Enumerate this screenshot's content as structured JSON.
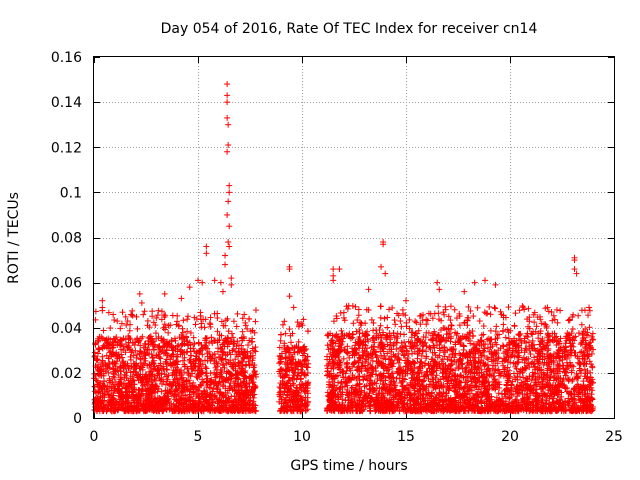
{
  "chart_data": {
    "type": "scatter",
    "title": "Day 054 of 2016, Rate Of TEC Index for receiver cn14",
    "xlabel": "GPS time / hours",
    "ylabel": "ROTI / TECUs",
    "xlim": [
      0,
      25
    ],
    "ylim": [
      0,
      0.16
    ],
    "x_ticks": [
      0,
      5,
      10,
      15,
      20,
      25
    ],
    "x_tick_labels": [
      "0",
      "5",
      "10",
      "15",
      "20",
      "25"
    ],
    "y_ticks": [
      0,
      0.02,
      0.04,
      0.06,
      0.08,
      0.1,
      0.12,
      0.14,
      0.16
    ],
    "y_tick_labels": [
      "0",
      "0.02",
      "0.04",
      "0.06",
      "0.08",
      "0.1",
      "0.12",
      "0.14",
      "0.16"
    ],
    "grid": true,
    "marker": "plus",
    "marker_color": "#ff0000",
    "data_gaps_hours": [
      [
        7.9,
        8.9
      ],
      [
        10.4,
        11.2
      ]
    ],
    "series": [
      {
        "name": "ROTI",
        "bands": [
          {
            "x_range": [
              0.0,
              7.8
            ],
            "y_range": [
              0.003,
              0.036
            ]
          },
          {
            "x_range": [
              8.9,
              10.3
            ],
            "y_range": [
              0.003,
              0.032
            ]
          },
          {
            "x_range": [
              11.2,
              24.0
            ],
            "y_range": [
              0.003,
              0.038
            ]
          }
        ],
        "peaks": [
          {
            "x": 0.4,
            "y": 0.052
          },
          {
            "x": 0.4,
            "y": 0.049
          },
          {
            "x": 2.2,
            "y": 0.055
          },
          {
            "x": 2.3,
            "y": 0.051
          },
          {
            "x": 3.4,
            "y": 0.055
          },
          {
            "x": 4.2,
            "y": 0.053
          },
          {
            "x": 4.6,
            "y": 0.058
          },
          {
            "x": 5.0,
            "y": 0.061
          },
          {
            "x": 5.2,
            "y": 0.06
          },
          {
            "x": 5.4,
            "y": 0.076
          },
          {
            "x": 5.4,
            "y": 0.073
          },
          {
            "x": 5.8,
            "y": 0.061
          },
          {
            "x": 6.1,
            "y": 0.06
          },
          {
            "x": 6.3,
            "y": 0.068
          },
          {
            "x": 6.4,
            "y": 0.148
          },
          {
            "x": 6.4,
            "y": 0.143
          },
          {
            "x": 6.4,
            "y": 0.14
          },
          {
            "x": 6.4,
            "y": 0.133
          },
          {
            "x": 6.45,
            "y": 0.13
          },
          {
            "x": 6.45,
            "y": 0.121
          },
          {
            "x": 6.4,
            "y": 0.118
          },
          {
            "x": 6.5,
            "y": 0.103
          },
          {
            "x": 6.5,
            "y": 0.1
          },
          {
            "x": 6.45,
            "y": 0.096
          },
          {
            "x": 6.4,
            "y": 0.09
          },
          {
            "x": 6.5,
            "y": 0.085
          },
          {
            "x": 6.45,
            "y": 0.078
          },
          {
            "x": 6.5,
            "y": 0.076
          },
          {
            "x": 6.3,
            "y": 0.072
          },
          {
            "x": 6.6,
            "y": 0.062
          },
          {
            "x": 6.6,
            "y": 0.059
          },
          {
            "x": 6.2,
            "y": 0.056
          },
          {
            "x": 9.4,
            "y": 0.067
          },
          {
            "x": 9.4,
            "y": 0.066
          },
          {
            "x": 9.4,
            "y": 0.054
          },
          {
            "x": 9.6,
            "y": 0.049
          },
          {
            "x": 11.5,
            "y": 0.066
          },
          {
            "x": 11.5,
            "y": 0.063
          },
          {
            "x": 11.5,
            "y": 0.061
          },
          {
            "x": 11.8,
            "y": 0.066
          },
          {
            "x": 13.2,
            "y": 0.057
          },
          {
            "x": 13.9,
            "y": 0.078
          },
          {
            "x": 13.9,
            "y": 0.077
          },
          {
            "x": 13.8,
            "y": 0.067
          },
          {
            "x": 14.0,
            "y": 0.064
          },
          {
            "x": 15.0,
            "y": 0.052
          },
          {
            "x": 16.5,
            "y": 0.06
          },
          {
            "x": 16.6,
            "y": 0.057
          },
          {
            "x": 17.8,
            "y": 0.056
          },
          {
            "x": 18.3,
            "y": 0.06
          },
          {
            "x": 18.8,
            "y": 0.061
          },
          {
            "x": 19.3,
            "y": 0.059
          },
          {
            "x": 21.8,
            "y": 0.049
          },
          {
            "x": 22.0,
            "y": 0.047
          },
          {
            "x": 23.1,
            "y": 0.071
          },
          {
            "x": 23.1,
            "y": 0.07
          },
          {
            "x": 23.1,
            "y": 0.066
          },
          {
            "x": 23.2,
            "y": 0.064
          },
          {
            "x": 23.8,
            "y": 0.049
          }
        ]
      }
    ]
  }
}
